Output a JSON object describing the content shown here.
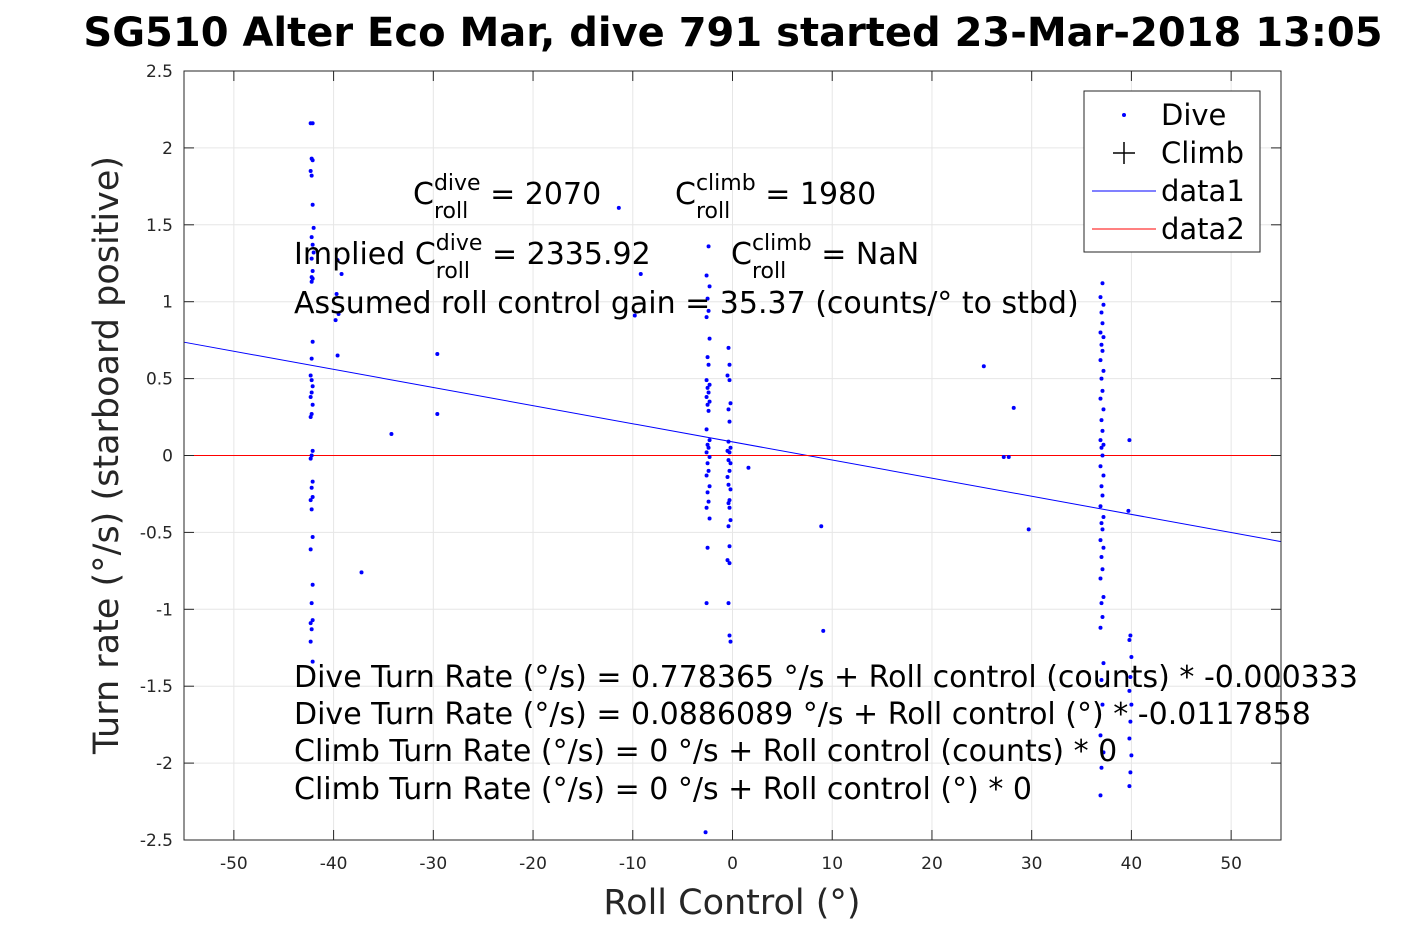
{
  "chart_data": {
    "type": "scatter",
    "title": "SG510 Alter Eco Mar, dive 791 started 23-Mar-2018 13:05",
    "xlabel": "Roll Control (°)",
    "ylabel": "Turn rate (°/s) (starboard positive)",
    "xlim": [
      -55,
      55
    ],
    "ylim": [
      -2.5,
      2.5
    ],
    "xticks": [
      -50,
      -40,
      -30,
      -20,
      -10,
      0,
      10,
      20,
      30,
      40,
      50
    ],
    "yticks": [
      -2.5,
      -2,
      -1.5,
      -1,
      -0.5,
      0,
      0.5,
      1,
      1.5,
      2,
      2.5
    ],
    "xtick_labels": [
      "-50",
      "-40",
      "-30",
      "-20",
      "-10",
      "0",
      "10",
      "20",
      "30",
      "40",
      "50"
    ],
    "ytick_labels": [
      "-2.5",
      "-2",
      "-1.5",
      "-1",
      "-0.5",
      "0",
      "0.5",
      "1",
      "1.5",
      "2",
      "2.5"
    ],
    "grid": true,
    "legend_position": "top-right",
    "series": [
      {
        "name": "Dive",
        "marker": "dot",
        "color": "#0000ff",
        "points": [
          [
            -42.3,
            2.16
          ],
          [
            -42.1,
            2.16
          ],
          [
            -42.2,
            1.93
          ],
          [
            -42.1,
            1.92
          ],
          [
            -42.3,
            1.85
          ],
          [
            -42.2,
            1.82
          ],
          [
            -42.1,
            1.63
          ],
          [
            -42.0,
            1.48
          ],
          [
            -42.2,
            1.42
          ],
          [
            -42.1,
            1.37
          ],
          [
            -42.0,
            1.32
          ],
          [
            -42.2,
            1.28
          ],
          [
            -42.1,
            1.2
          ],
          [
            -42.2,
            1.16
          ],
          [
            -42.1,
            1.15
          ],
          [
            -42.2,
            1.13
          ],
          [
            -42.1,
            0.74
          ],
          [
            -42.2,
            0.63
          ],
          [
            -42.3,
            0.52
          ],
          [
            -42.2,
            0.49
          ],
          [
            -42.1,
            0.45
          ],
          [
            -42.2,
            0.41
          ],
          [
            -42.3,
            0.38
          ],
          [
            -42.1,
            0.33
          ],
          [
            -42.2,
            0.27
          ],
          [
            -42.3,
            0.25
          ],
          [
            -42.1,
            0.03
          ],
          [
            -42.2,
            0.0
          ],
          [
            -42.3,
            -0.02
          ],
          [
            -42.1,
            -0.17
          ],
          [
            -42.2,
            -0.21
          ],
          [
            -42.1,
            -0.27
          ],
          [
            -42.3,
            -0.29
          ],
          [
            -42.2,
            -0.35
          ],
          [
            -42.1,
            -0.53
          ],
          [
            -42.3,
            -0.61
          ],
          [
            -42.1,
            -0.84
          ],
          [
            -42.2,
            -0.96
          ],
          [
            -42.1,
            -1.07
          ],
          [
            -42.3,
            -1.09
          ],
          [
            -42.2,
            -1.13
          ],
          [
            -42.3,
            -1.21
          ],
          [
            -42.1,
            -1.34
          ],
          [
            -39.6,
            1.27
          ],
          [
            -39.2,
            1.18
          ],
          [
            -39.7,
            1.05
          ],
          [
            -39.5,
            0.92
          ],
          [
            -39.8,
            0.88
          ],
          [
            -39.6,
            0.65
          ],
          [
            -34.2,
            0.14
          ],
          [
            -37.2,
            -0.76
          ],
          [
            -29.6,
            0.66
          ],
          [
            -29.6,
            0.27
          ],
          [
            -11.4,
            1.61
          ],
          [
            -9.2,
            1.18
          ],
          [
            -9.8,
            0.91
          ],
          [
            -2.4,
            1.36
          ],
          [
            -2.6,
            1.17
          ],
          [
            -2.3,
            1.1
          ],
          [
            -2.5,
            1.02
          ],
          [
            -2.4,
            0.94
          ],
          [
            -2.6,
            0.9
          ],
          [
            -2.3,
            0.76
          ],
          [
            -2.5,
            0.64
          ],
          [
            -2.4,
            0.59
          ],
          [
            -2.6,
            0.49
          ],
          [
            -2.3,
            0.46
          ],
          [
            -2.5,
            0.44
          ],
          [
            -2.4,
            0.41
          ],
          [
            -2.6,
            0.38
          ],
          [
            -2.3,
            0.35
          ],
          [
            -2.5,
            0.33
          ],
          [
            -2.4,
            0.29
          ],
          [
            -2.6,
            0.17
          ],
          [
            -2.3,
            0.1
          ],
          [
            -2.5,
            0.07
          ],
          [
            -2.4,
            0.05
          ],
          [
            -2.6,
            0.02
          ],
          [
            -2.3,
            -0.01
          ],
          [
            -2.5,
            -0.05
          ],
          [
            -2.4,
            -0.1
          ],
          [
            -2.6,
            -0.13
          ],
          [
            -2.3,
            -0.2
          ],
          [
            -2.5,
            -0.24
          ],
          [
            -2.4,
            -0.3
          ],
          [
            -2.6,
            -0.34
          ],
          [
            -2.3,
            -0.41
          ],
          [
            -2.5,
            -0.6
          ],
          [
            -2.6,
            -0.96
          ],
          [
            -2.7,
            -2.45
          ],
          [
            -0.4,
            0.7
          ],
          [
            -0.3,
            0.59
          ],
          [
            -0.5,
            0.52
          ],
          [
            -0.3,
            0.49
          ],
          [
            -0.2,
            0.34
          ],
          [
            -0.4,
            0.3
          ],
          [
            -0.3,
            0.22
          ],
          [
            -0.4,
            0.09
          ],
          [
            -0.2,
            0.05
          ],
          [
            -0.5,
            0.03
          ],
          [
            -0.3,
            0.02
          ],
          [
            -0.4,
            -0.03
          ],
          [
            -0.2,
            -0.05
          ],
          [
            -0.3,
            -0.1
          ],
          [
            -0.5,
            -0.14
          ],
          [
            -0.4,
            -0.19
          ],
          [
            -0.2,
            -0.22
          ],
          [
            -0.3,
            -0.29
          ],
          [
            -0.4,
            -0.31
          ],
          [
            -0.3,
            -0.34
          ],
          [
            -0.2,
            -0.42
          ],
          [
            -0.4,
            -0.46
          ],
          [
            -0.3,
            -0.59
          ],
          [
            -0.5,
            -0.68
          ],
          [
            -0.3,
            -0.7
          ],
          [
            -0.4,
            -0.96
          ],
          [
            -0.3,
            -1.17
          ],
          [
            -0.2,
            -1.21
          ],
          [
            1.6,
            -0.08
          ],
          [
            8.9,
            -0.46
          ],
          [
            9.1,
            -1.14
          ],
          [
            25.2,
            0.58
          ],
          [
            27.2,
            -0.01
          ],
          [
            27.7,
            -0.01
          ],
          [
            28.2,
            0.31
          ],
          [
            29.7,
            -0.48
          ],
          [
            37.1,
            1.12
          ],
          [
            36.9,
            1.03
          ],
          [
            37.2,
            0.98
          ],
          [
            37.0,
            0.93
          ],
          [
            37.1,
            0.86
          ],
          [
            36.9,
            0.8
          ],
          [
            37.2,
            0.77
          ],
          [
            37.0,
            0.72
          ],
          [
            37.1,
            0.68
          ],
          [
            36.9,
            0.62
          ],
          [
            37.2,
            0.55
          ],
          [
            37.0,
            0.5
          ],
          [
            37.1,
            0.42
          ],
          [
            36.9,
            0.37
          ],
          [
            37.2,
            0.3
          ],
          [
            37.0,
            0.23
          ],
          [
            37.1,
            0.16
          ],
          [
            36.9,
            0.1
          ],
          [
            37.2,
            0.07
          ],
          [
            37.0,
            0.05
          ],
          [
            37.1,
            0.0
          ],
          [
            36.9,
            -0.07
          ],
          [
            37.2,
            -0.13
          ],
          [
            37.0,
            -0.2
          ],
          [
            37.1,
            -0.26
          ],
          [
            36.9,
            -0.33
          ],
          [
            37.2,
            -0.4
          ],
          [
            37.0,
            -0.44
          ],
          [
            37.1,
            -0.48
          ],
          [
            36.9,
            -0.55
          ],
          [
            37.2,
            -0.6
          ],
          [
            37.0,
            -0.66
          ],
          [
            37.1,
            -0.74
          ],
          [
            36.9,
            -0.8
          ],
          [
            37.2,
            -0.92
          ],
          [
            37.0,
            -0.96
          ],
          [
            37.1,
            -1.05
          ],
          [
            36.9,
            -1.12
          ],
          [
            37.2,
            -1.35
          ],
          [
            37.0,
            -1.46
          ],
          [
            37.1,
            -1.62
          ],
          [
            36.9,
            -1.82
          ],
          [
            37.2,
            -1.93
          ],
          [
            37.0,
            -2.03
          ],
          [
            36.9,
            -2.21
          ],
          [
            39.8,
            0.1
          ],
          [
            39.7,
            -0.36
          ],
          [
            39.9,
            -1.17
          ],
          [
            39.8,
            -1.2
          ],
          [
            40.0,
            -1.31
          ],
          [
            39.9,
            -1.44
          ],
          [
            39.8,
            -1.53
          ],
          [
            40.0,
            -1.62
          ],
          [
            39.9,
            -1.73
          ],
          [
            39.8,
            -1.84
          ],
          [
            40.0,
            -1.95
          ],
          [
            39.9,
            -2.06
          ],
          [
            39.8,
            -2.15
          ]
        ]
      },
      {
        "name": "Climb",
        "marker": "plus",
        "color": "#000000",
        "points": []
      },
      {
        "name": "data1",
        "type": "line",
        "color": "#0000ff",
        "points": [
          [
            -55,
            0.7368
          ],
          [
            55,
            -0.5598
          ]
        ]
      },
      {
        "name": "data2",
        "type": "line",
        "color": "#ff0000",
        "points": [
          [
            -55,
            0
          ],
          [
            55,
            0
          ]
        ]
      }
    ],
    "annotations": [
      {
        "id": "cdive",
        "base": "C",
        "sup": "dive",
        "sub": "roll",
        "rest": " = 2070"
      },
      {
        "id": "cclimb",
        "base": "C",
        "sup": "climb",
        "sub": "roll",
        "rest": " = 1980"
      },
      {
        "id": "implied-dive",
        "prefix": "Implied ",
        "base": "C",
        "sup": "dive",
        "sub": "roll",
        "rest": " = 2335.92"
      },
      {
        "id": "implied-climb",
        "base": "C",
        "sup": "climb",
        "sub": "roll",
        "rest": " = NaN"
      },
      {
        "id": "gain",
        "text": "Assumed roll control gain = 35.37 (counts/° to stbd)"
      },
      {
        "id": "eq1",
        "text": "Dive Turn Rate (°/s) = 0.778365 °/s + Roll control (counts) * -0.000333"
      },
      {
        "id": "eq2",
        "text": "Dive Turn Rate (°/s) = 0.0886089 °/s + Roll control (°) * -0.0117858"
      },
      {
        "id": "eq3",
        "text": "Climb Turn Rate (°/s) = 0 °/s + Roll control (counts) * 0"
      },
      {
        "id": "eq4",
        "text": "Climb Turn Rate (°/s) = 0 °/s + Roll control (°) * 0"
      }
    ]
  }
}
